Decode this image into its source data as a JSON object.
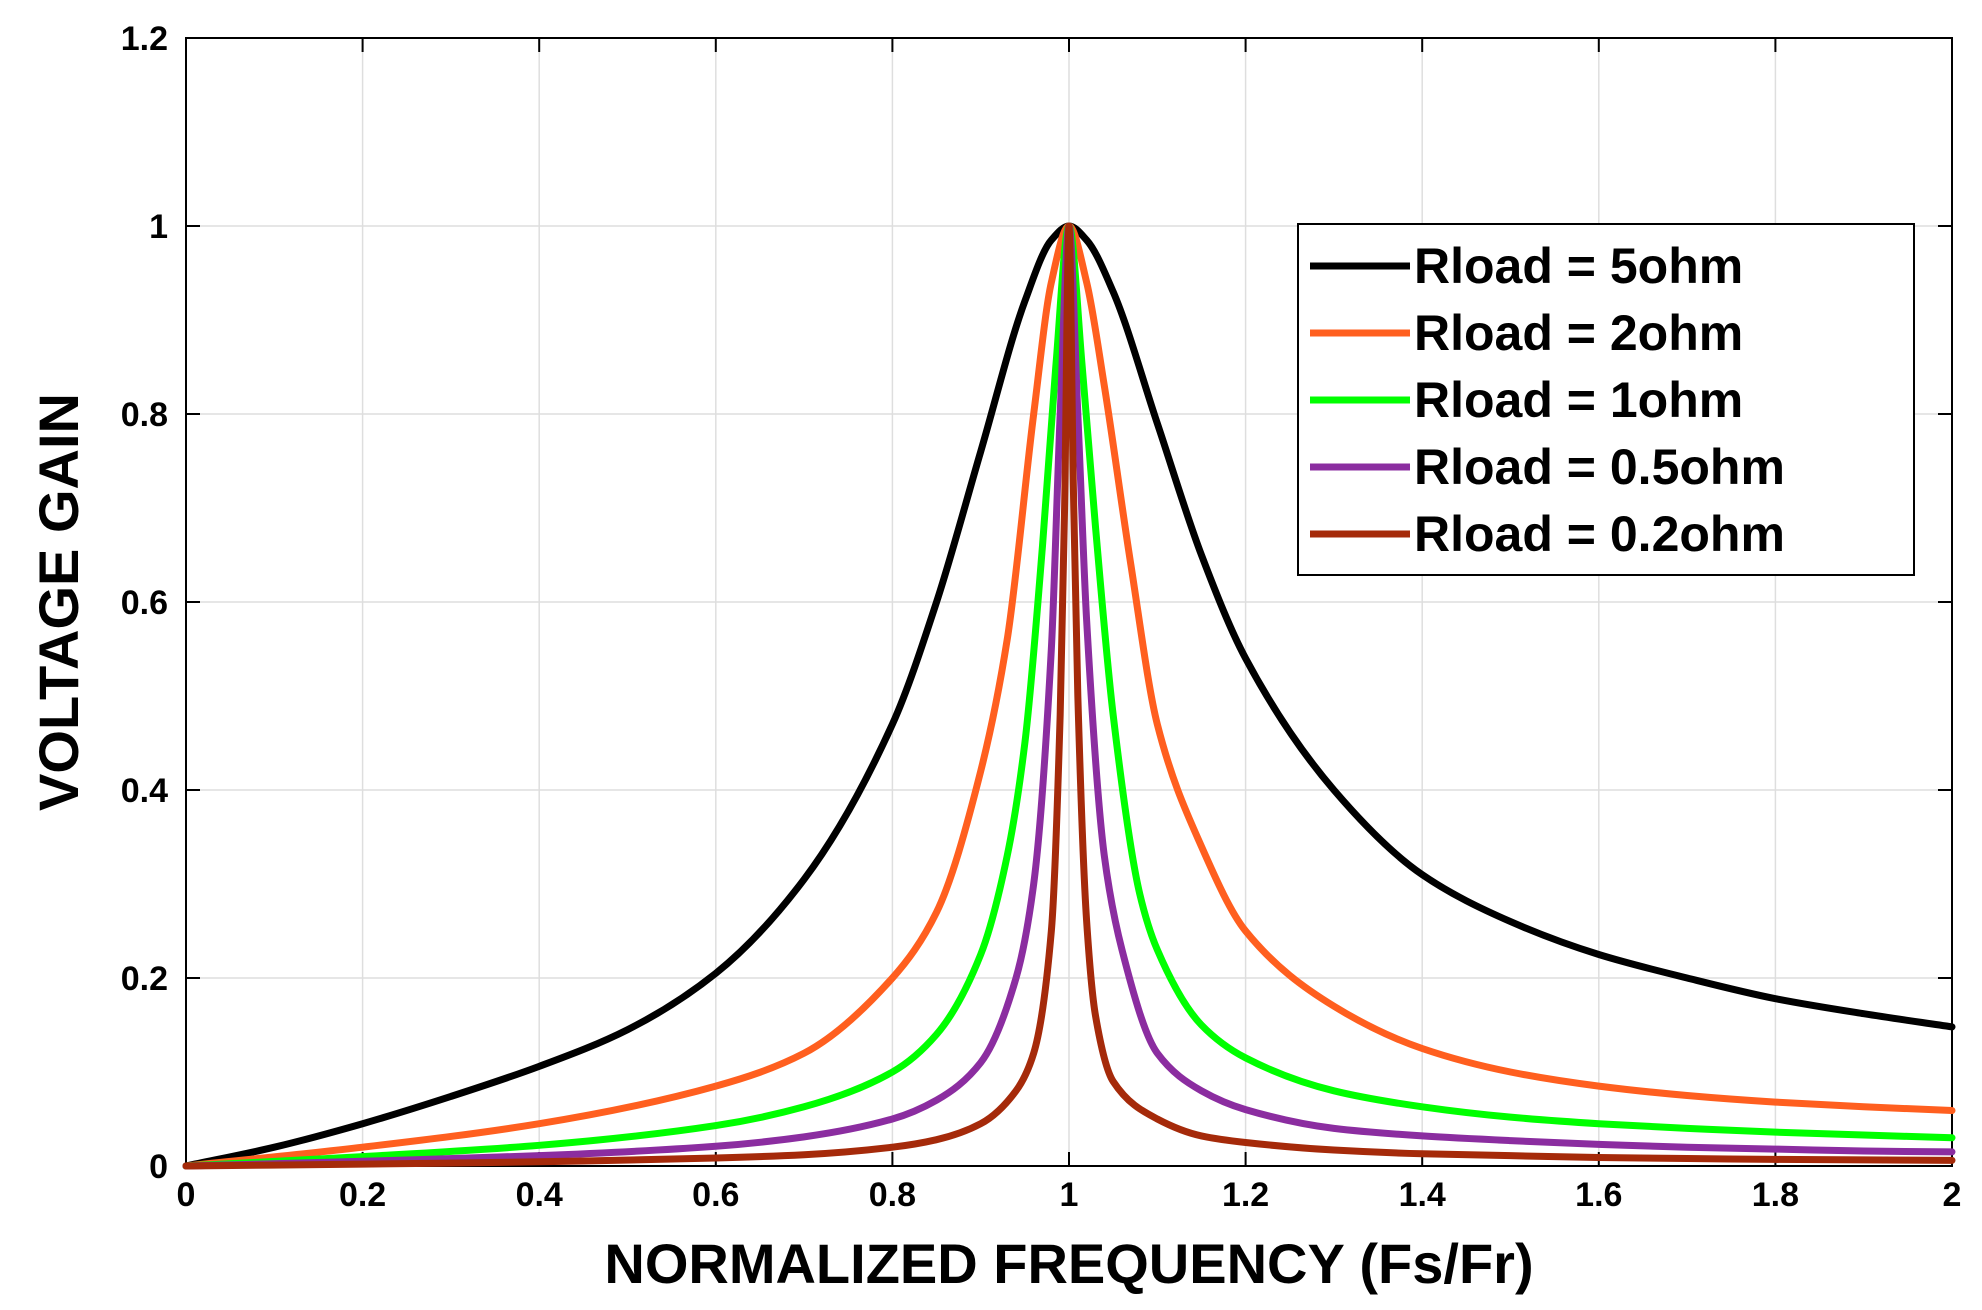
{
  "chart_data": {
    "type": "line",
    "title": "",
    "xlabel": "NORMALIZED FREQUENCY (Fs/Fr)",
    "ylabel": "VOLTAGE GAIN",
    "xlim": [
      0,
      2
    ],
    "ylim": [
      0,
      1.2
    ],
    "xticks": [
      0,
      0.2,
      0.4,
      0.6,
      0.8,
      1,
      1.2,
      1.4,
      1.6,
      1.8,
      2
    ],
    "xtick_labels": [
      "0",
      "0.2",
      "0.4",
      "0.6",
      "0.8",
      "1",
      "1.2",
      "1.4",
      "1.6",
      "1.8",
      "2"
    ],
    "yticks": [
      0,
      0.2,
      0.4,
      0.6,
      0.8,
      1,
      1.2
    ],
    "ytick_labels": [
      "0",
      "0.2",
      "0.4",
      "0.6",
      "0.8",
      "1",
      "1.2"
    ],
    "grid": true,
    "legend_position": "top-right",
    "series": [
      {
        "name": "Rload = 5ohm",
        "color": "#000000",
        "x": [
          0,
          0.1,
          0.2,
          0.3,
          0.4,
          0.5,
          0.6,
          0.7,
          0.8,
          0.85,
          0.9,
          0.95,
          0.98,
          1.0,
          1.02,
          1.05,
          1.1,
          1.15,
          1.2,
          1.3,
          1.4,
          1.5,
          1.6,
          1.7,
          1.8,
          1.9,
          2.0
        ],
        "values": [
          0,
          0.02,
          0.045,
          0.074,
          0.106,
          0.145,
          0.205,
          0.305,
          0.47,
          0.6,
          0.76,
          0.92,
          0.985,
          1.0,
          0.985,
          0.93,
          0.79,
          0.65,
          0.54,
          0.4,
          0.31,
          0.26,
          0.225,
          0.2,
          0.178,
          0.162,
          0.148
        ]
      },
      {
        "name": "Rload = 2ohm",
        "color": "#FF5F1F",
        "x": [
          0,
          0.2,
          0.4,
          0.6,
          0.7,
          0.8,
          0.85,
          0.9,
          0.93,
          0.96,
          0.98,
          1.0,
          1.02,
          1.04,
          1.07,
          1.1,
          1.15,
          1.2,
          1.3,
          1.4,
          1.5,
          1.6,
          1.7,
          1.8,
          1.9,
          2.0
        ],
        "values": [
          0,
          0.02,
          0.045,
          0.085,
          0.12,
          0.2,
          0.27,
          0.42,
          0.56,
          0.8,
          0.94,
          1.0,
          0.94,
          0.83,
          0.64,
          0.47,
          0.34,
          0.25,
          0.17,
          0.125,
          0.1,
          0.085,
          0.075,
          0.068,
          0.063,
          0.059
        ]
      },
      {
        "name": "Rload = 1ohm",
        "color": "#00FF00",
        "x": [
          0,
          0.2,
          0.4,
          0.6,
          0.7,
          0.8,
          0.85,
          0.9,
          0.93,
          0.95,
          0.97,
          0.985,
          1.0,
          1.015,
          1.03,
          1.05,
          1.08,
          1.1,
          1.15,
          1.2,
          1.3,
          1.4,
          1.5,
          1.6,
          1.7,
          1.8,
          1.9,
          2.0
        ],
        "values": [
          0,
          0.01,
          0.022,
          0.043,
          0.063,
          0.1,
          0.14,
          0.225,
          0.33,
          0.45,
          0.66,
          0.85,
          1.0,
          0.85,
          0.68,
          0.48,
          0.29,
          0.23,
          0.15,
          0.115,
          0.08,
          0.063,
          0.052,
          0.045,
          0.04,
          0.036,
          0.033,
          0.03
        ]
      },
      {
        "name": "Rload = 0.5ohm",
        "color": "#8B2DA0",
        "x": [
          0,
          0.2,
          0.4,
          0.6,
          0.7,
          0.8,
          0.85,
          0.9,
          0.94,
          0.96,
          0.98,
          0.99,
          1.0,
          1.01,
          1.02,
          1.04,
          1.06,
          1.1,
          1.15,
          1.2,
          1.3,
          1.4,
          1.5,
          1.6,
          1.7,
          1.8,
          1.9,
          2.0
        ],
        "values": [
          0,
          0.005,
          0.011,
          0.021,
          0.031,
          0.05,
          0.07,
          0.11,
          0.2,
          0.3,
          0.55,
          0.8,
          1.0,
          0.8,
          0.58,
          0.33,
          0.23,
          0.12,
          0.08,
          0.06,
          0.04,
          0.032,
          0.027,
          0.023,
          0.02,
          0.018,
          0.016,
          0.015
        ]
      },
      {
        "name": "Rload = 0.2ohm",
        "color": "#A52A0A",
        "x": [
          0,
          0.2,
          0.4,
          0.6,
          0.7,
          0.8,
          0.85,
          0.9,
          0.94,
          0.96,
          0.98,
          0.99,
          0.995,
          1.0,
          1.005,
          1.01,
          1.02,
          1.03,
          1.05,
          1.1,
          1.15,
          1.2,
          1.3,
          1.4,
          1.5,
          1.6,
          1.7,
          1.8,
          1.9,
          2.0
        ],
        "values": [
          0,
          0.002,
          0.0045,
          0.0085,
          0.012,
          0.02,
          0.028,
          0.045,
          0.08,
          0.12,
          0.25,
          0.48,
          0.7,
          1.0,
          0.72,
          0.5,
          0.26,
          0.16,
          0.09,
          0.05,
          0.032,
          0.025,
          0.017,
          0.013,
          0.011,
          0.009,
          0.008,
          0.007,
          0.0065,
          0.006
        ]
      }
    ]
  }
}
